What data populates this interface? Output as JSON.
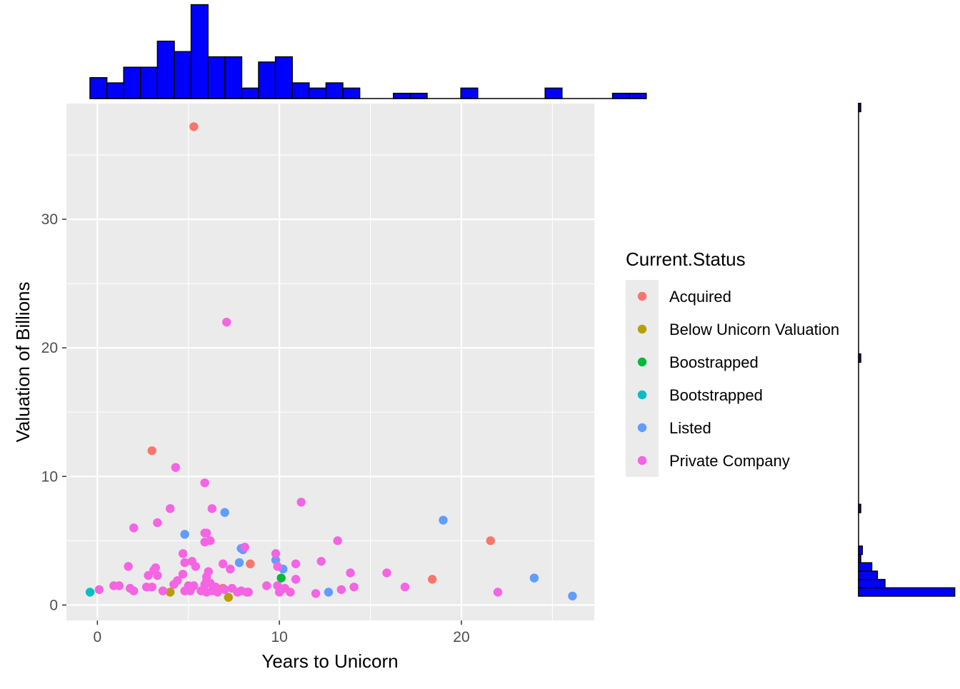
{
  "chart_data": {
    "type": "scatter",
    "xlabel": "Years to Unicorn",
    "ylabel": "Valuation of Billions",
    "xlim": [
      -1.7,
      27.3
    ],
    "ylim": [
      -1.2,
      39.0
    ],
    "x_ticks": [
      0,
      10,
      20
    ],
    "y_ticks": [
      0,
      10,
      20,
      30
    ],
    "grid": true,
    "panel_background": "#ebebeb",
    "legend": {
      "title": "Current.Status",
      "placement": "right",
      "items": [
        {
          "label": "Acquired",
          "color": "#F8766D"
        },
        {
          "label": "Below Unicorn Valuation",
          "color": "#B79F00"
        },
        {
          "label": "Boostrapped",
          "color": "#00BA38"
        },
        {
          "label": "Bootstrapped",
          "color": "#00BFC4"
        },
        {
          "label": "Listed",
          "color": "#619CFF"
        },
        {
          "label": "Private Company",
          "color": "#F564E3"
        }
      ]
    },
    "series": [
      {
        "name": "Acquired",
        "color": "#F8766D",
        "points": [
          [
            5.3,
            37.2
          ],
          [
            3.0,
            12.0
          ],
          [
            8.4,
            3.2
          ],
          [
            6.9,
            1.3
          ],
          [
            18.4,
            2.0
          ],
          [
            21.6,
            5.0
          ]
        ]
      },
      {
        "name": "Below Unicorn Valuation",
        "color": "#B79F00",
        "points": [
          [
            4.0,
            1.0
          ],
          [
            7.2,
            0.6
          ]
        ]
      },
      {
        "name": "Boostrapped",
        "color": "#00BA38",
        "points": [
          [
            10.1,
            2.1
          ]
        ]
      },
      {
        "name": "Bootstrapped",
        "color": "#00BFC4",
        "points": [
          [
            -0.4,
            1.0
          ]
        ]
      },
      {
        "name": "Listed",
        "color": "#619CFF",
        "points": [
          [
            7.0,
            7.2
          ],
          [
            4.8,
            5.5
          ],
          [
            8.0,
            4.3
          ],
          [
            7.9,
            4.4
          ],
          [
            7.8,
            3.3
          ],
          [
            9.8,
            3.5
          ],
          [
            10.2,
            2.8
          ],
          [
            12.7,
            1.0
          ],
          [
            19.0,
            6.6
          ],
          [
            24.0,
            2.1
          ],
          [
            26.1,
            0.7
          ]
        ]
      },
      {
        "name": "Private Company",
        "color": "#F564E3",
        "points": [
          [
            7.1,
            22.0
          ],
          [
            4.3,
            10.7
          ],
          [
            5.9,
            9.5
          ],
          [
            4.0,
            7.5
          ],
          [
            6.3,
            7.5
          ],
          [
            11.2,
            8.0
          ],
          [
            3.3,
            6.4
          ],
          [
            2.0,
            6.0
          ],
          [
            5.9,
            5.6
          ],
          [
            6.0,
            5.6
          ],
          [
            5.9,
            4.9
          ],
          [
            6.2,
            5.0
          ],
          [
            13.2,
            5.0
          ],
          [
            8.1,
            4.5
          ],
          [
            4.7,
            4.0
          ],
          [
            9.8,
            4.0
          ],
          [
            4.8,
            3.3
          ],
          [
            5.2,
            3.4
          ],
          [
            5.4,
            3.0
          ],
          [
            6.9,
            3.2
          ],
          [
            7.3,
            2.8
          ],
          [
            9.9,
            3.0
          ],
          [
            10.9,
            3.2
          ],
          [
            12.3,
            3.4
          ],
          [
            1.7,
            3.0
          ],
          [
            3.2,
            2.9
          ],
          [
            3.1,
            2.7
          ],
          [
            2.8,
            2.3
          ],
          [
            3.3,
            2.3
          ],
          [
            4.7,
            2.4
          ],
          [
            6.1,
            2.6
          ],
          [
            6.0,
            2.2
          ],
          [
            10.9,
            2.0
          ],
          [
            13.9,
            2.5
          ],
          [
            15.9,
            2.5
          ],
          [
            4.4,
            1.9
          ],
          [
            4.2,
            1.6
          ],
          [
            5.0,
            1.5
          ],
          [
            5.3,
            1.5
          ],
          [
            5.9,
            1.6
          ],
          [
            6.0,
            1.9
          ],
          [
            6.2,
            1.7
          ],
          [
            6.5,
            1.4
          ],
          [
            7.0,
            1.2
          ],
          [
            7.4,
            1.3
          ],
          [
            7.9,
            1.1
          ],
          [
            8.2,
            1.0
          ],
          [
            9.3,
            1.5
          ],
          [
            9.9,
            1.5
          ],
          [
            10.1,
            1.2
          ],
          [
            10.3,
            1.3
          ],
          [
            10.0,
            1.0
          ],
          [
            10.6,
            1.0
          ],
          [
            12.0,
            0.9
          ],
          [
            13.4,
            1.2
          ],
          [
            14.1,
            1.4
          ],
          [
            16.9,
            1.4
          ],
          [
            22.0,
            1.0
          ],
          [
            0.1,
            1.2
          ],
          [
            0.9,
            1.5
          ],
          [
            1.2,
            1.5
          ],
          [
            1.8,
            1.3
          ],
          [
            2.0,
            1.1
          ],
          [
            2.7,
            1.4
          ],
          [
            3.0,
            1.4
          ],
          [
            3.6,
            1.1
          ],
          [
            4.8,
            1.1
          ],
          [
            5.1,
            1.1
          ],
          [
            5.7,
            1.1
          ],
          [
            6.0,
            1.0
          ],
          [
            6.3,
            1.1
          ],
          [
            6.6,
            1.0
          ],
          [
            7.7,
            1.0
          ],
          [
            8.3,
            1.0
          ]
        ]
      }
    ]
  },
  "marginal_x": {
    "type": "histogram",
    "fill": "#0000ff",
    "counts": [
      4,
      3,
      6,
      6,
      11,
      9,
      18,
      8,
      8,
      2,
      7,
      8,
      3,
      2,
      3,
      2,
      0,
      0,
      1,
      1,
      0,
      0,
      2,
      0,
      0,
      0,
      0,
      2,
      0,
      0,
      0,
      1,
      1
    ]
  },
  "marginal_y": {
    "type": "histogram",
    "fill": "#0000ff",
    "counts": [
      51,
      14,
      10,
      7,
      1,
      2,
      0,
      0,
      0,
      0,
      1,
      0,
      0,
      0,
      0,
      0,
      0,
      0,
      0,
      0,
      0,
      0,
      0,
      0,
      0,
      0,
      0,
      0,
      1,
      0,
      0,
      0,
      0,
      0,
      0,
      0,
      0,
      0,
      0,
      0,
      0,
      0,
      0,
      0,
      0,
      0,
      0,
      0,
      0,
      0,
      0,
      0,
      0,
      0,
      0,
      0,
      0,
      0,
      1
    ]
  }
}
